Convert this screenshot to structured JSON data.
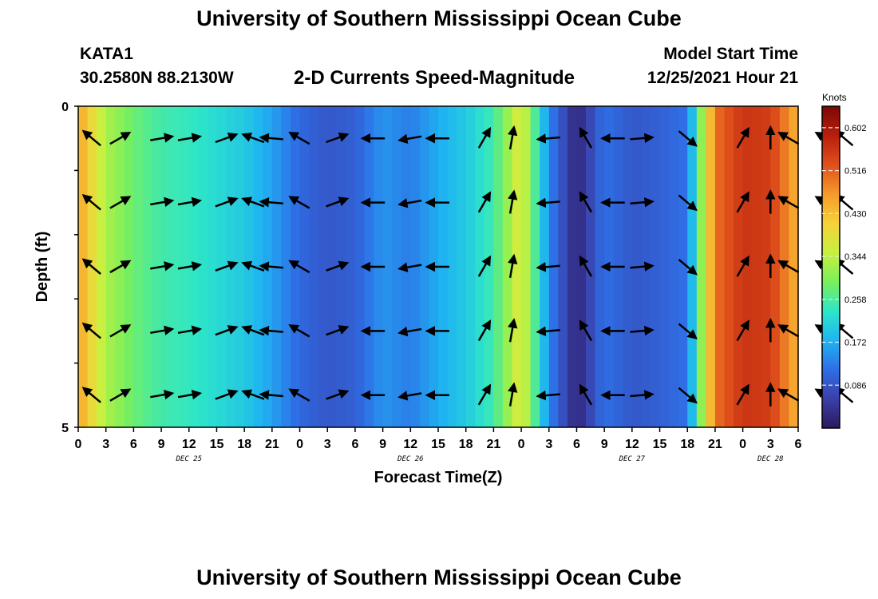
{
  "header": {
    "title": "University of Southern Mississippi Ocean Cube",
    "station": "KATA1",
    "coords": "30.2580N  88.2130W",
    "subtitle": "2-D Currents Speed-Magnitude",
    "model_start_label": "Model Start Time",
    "model_start_value": "12/25/2021 Hour 21",
    "footer_title": "University of Southern Mississippi Ocean Cube"
  },
  "chart_data": {
    "type": "heatmap",
    "title": "2-D Currents Speed-Magnitude",
    "xlabel": "Forecast Time(Z)",
    "ylabel": "Depth (ft)",
    "y_ticks": [
      "0",
      "5"
    ],
    "ylim": [
      0,
      5
    ],
    "x_ticks": [
      "0",
      "3",
      "6",
      "9",
      "12",
      "15",
      "18",
      "21",
      "0",
      "3",
      "6",
      "9",
      "12",
      "15",
      "18",
      "21",
      "0",
      "3",
      "6",
      "9",
      "12",
      "15",
      "18",
      "21",
      "0",
      "3",
      "6"
    ],
    "date_labels": [
      "DEC 25",
      "DEC 26",
      "DEC 27",
      "DEC 28"
    ],
    "colorbar": {
      "title": "Knots",
      "ticks": [
        "0.602",
        "0.516",
        "0.430",
        "0.344",
        "0.258",
        "0.172",
        "0.086"
      ],
      "range": [
        0.0,
        0.645
      ]
    },
    "colors": [
      "#2a1a5e",
      "#3a3fa8",
      "#2f6ee6",
      "#1fb4f2",
      "#2ee6c8",
      "#7af05a",
      "#c8f040",
      "#f5d23a",
      "#f59a2a",
      "#e0501c",
      "#b81e0c",
      "#7a0806"
    ],
    "speed_profile_hours": [
      0,
      3,
      6,
      9,
      12,
      15,
      18,
      21,
      24,
      27,
      30,
      33,
      36,
      39,
      42,
      45,
      48,
      51,
      54,
      57,
      60,
      63,
      66,
      69,
      72,
      75,
      78
    ],
    "speed_profile_knots": [
      0.46,
      0.33,
      0.28,
      0.25,
      0.24,
      0.22,
      0.2,
      0.16,
      0.11,
      0.09,
      0.1,
      0.15,
      0.13,
      0.17,
      0.2,
      0.25,
      0.38,
      0.14,
      0.02,
      0.12,
      0.09,
      0.1,
      0.12,
      0.5,
      0.56,
      0.55,
      0.44
    ],
    "vector_hours": [
      1.5,
      4.5,
      9,
      12,
      16,
      19,
      21,
      24,
      28,
      32,
      36,
      39,
      44,
      47,
      51,
      55,
      58,
      61,
      66,
      72,
      75,
      77,
      81,
      83
    ],
    "vector_depths": [
      0.5,
      1.5,
      2.5,
      3.5,
      4.5
    ],
    "vector_dirs_deg": [
      140,
      30,
      10,
      10,
      20,
      160,
      175,
      150,
      20,
      180,
      190,
      180,
      60,
      80,
      185,
      120,
      180,
      5,
      -40,
      60,
      90,
      150,
      150,
      140
    ]
  }
}
